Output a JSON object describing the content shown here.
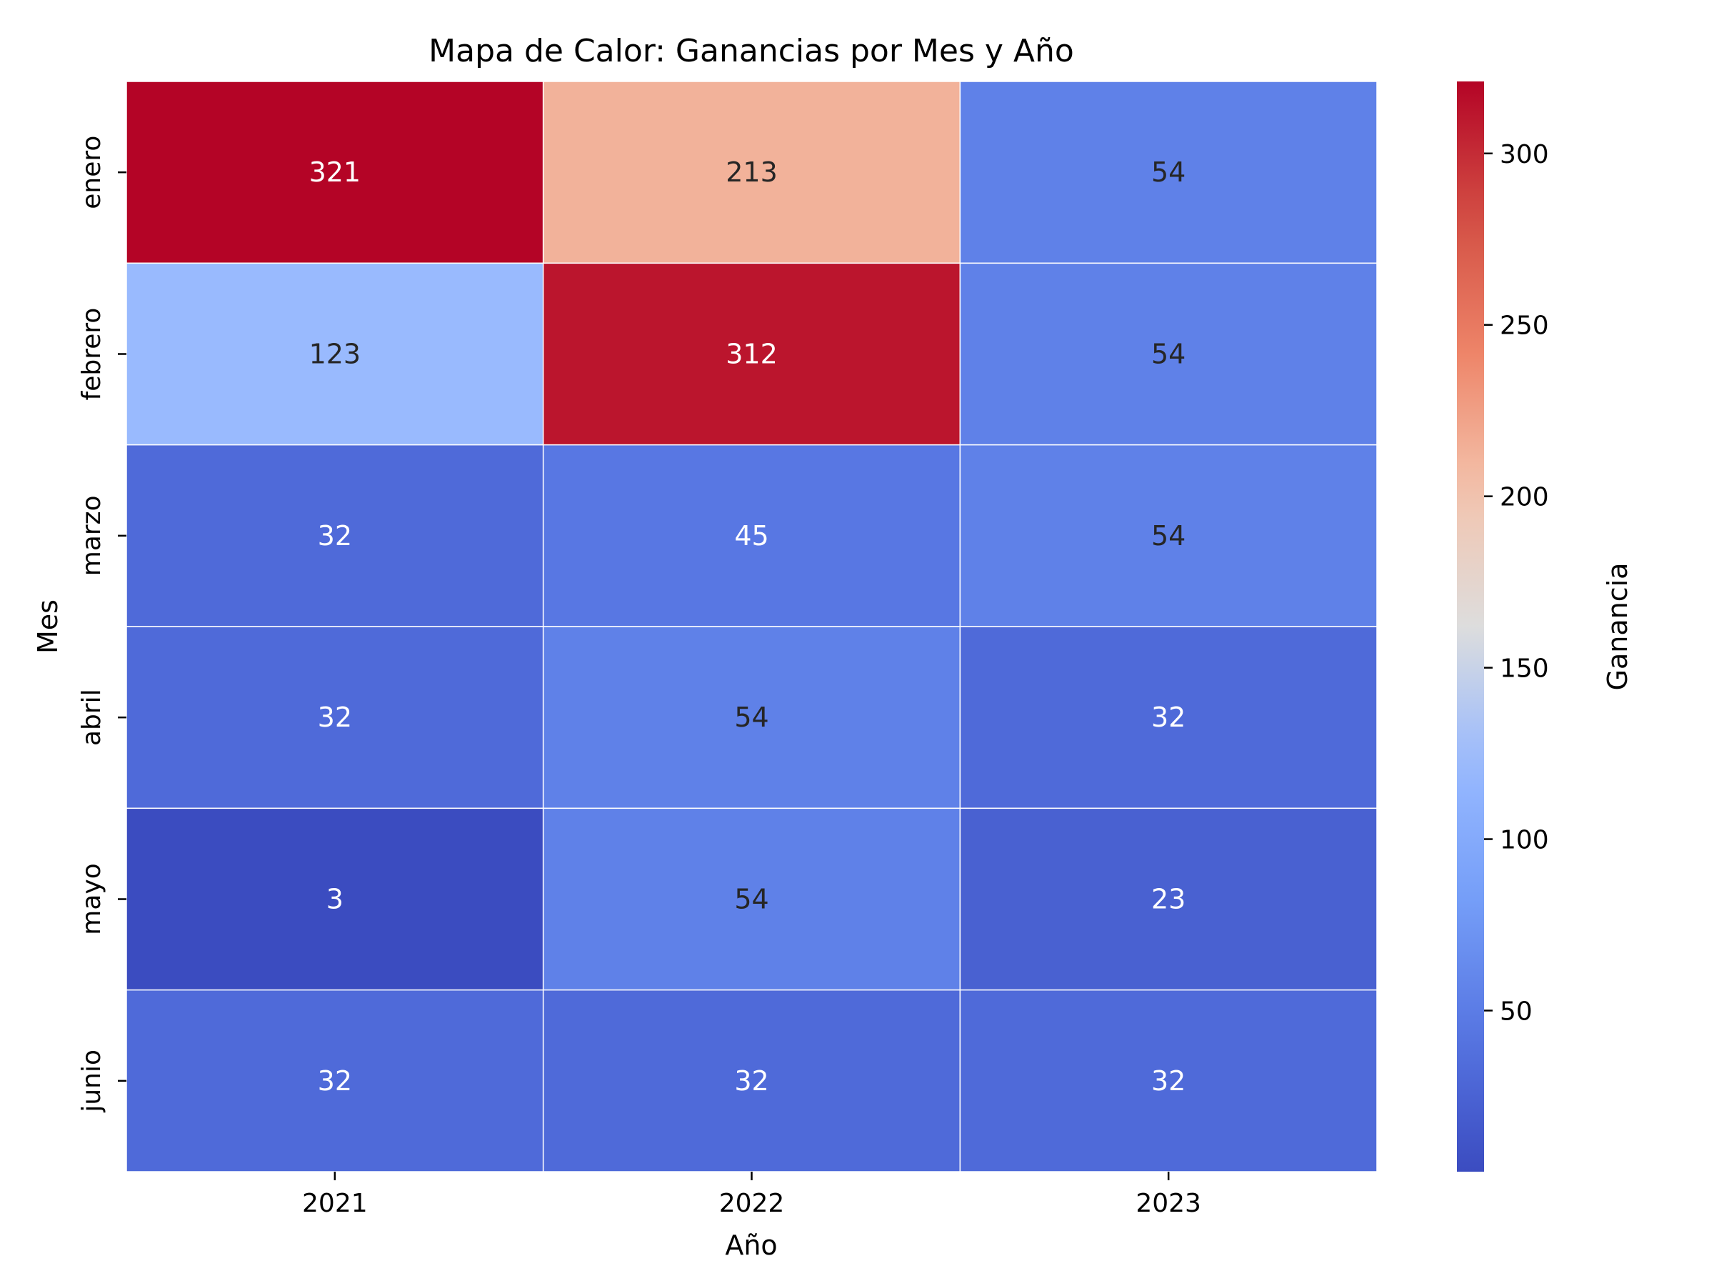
{
  "chart_data": {
    "type": "heatmap",
    "title": "Mapa de Calor: Ganancias por Mes y Año",
    "xlabel": "Año",
    "ylabel": "Mes",
    "x_categories": [
      "2021",
      "2022",
      "2023"
    ],
    "y_categories": [
      "enero",
      "febrero",
      "marzo",
      "abril",
      "mayo",
      "junio"
    ],
    "values": [
      [
        321,
        213,
        54
      ],
      [
        123,
        312,
        54
      ],
      [
        32,
        45,
        54
      ],
      [
        32,
        54,
        32
      ],
      [
        3,
        54,
        23
      ],
      [
        32,
        32,
        32
      ]
    ],
    "colormap": "coolwarm",
    "color_range": [
      3,
      321
    ],
    "colorbar": {
      "label": "Ganancia",
      "ticks": [
        50,
        100,
        150,
        200,
        250,
        300
      ]
    },
    "annotations": true,
    "grid": false,
    "legend_placement": "right"
  }
}
